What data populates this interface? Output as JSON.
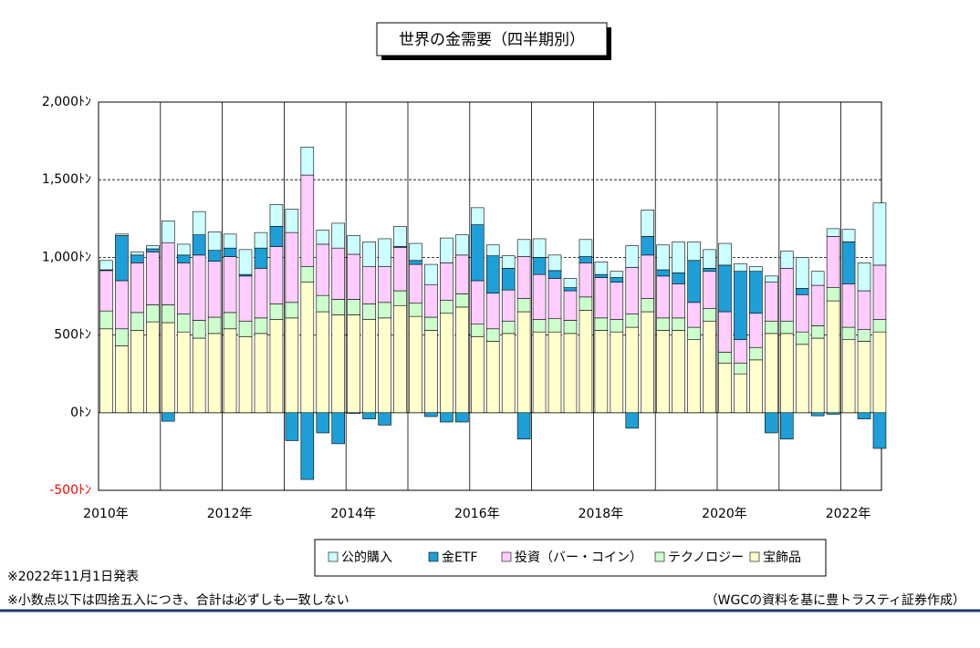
{
  "chart_data": {
    "type": "bar",
    "stacked": true,
    "title": "世界の金需要（四半期別）",
    "categories": [
      "2010年",
      null,
      null,
      null,
      null,
      null,
      null,
      null,
      "2012年",
      null,
      null,
      null,
      null,
      null,
      null,
      null,
      "2014年",
      null,
      null,
      null,
      null,
      null,
      null,
      null,
      "2016年",
      null,
      null,
      null,
      null,
      null,
      null,
      null,
      "2018年",
      null,
      null,
      null,
      null,
      null,
      null,
      null,
      "2020年",
      null,
      null,
      null,
      null,
      null,
      null,
      null,
      "2022年",
      null,
      null
    ],
    "series": [
      {
        "name": "宝飾品",
        "color": "#ffffcc",
        "values": [
          540,
          430,
          530,
          585,
          580,
          520,
          480,
          510,
          540,
          490,
          510,
          600,
          610,
          840,
          650,
          630,
          630,
          600,
          610,
          690,
          620,
          530,
          640,
          680,
          490,
          460,
          510,
          650,
          520,
          520,
          510,
          660,
          530,
          520,
          550,
          650,
          530,
          530,
          470,
          590,
          320,
          250,
          340,
          510,
          510,
          440,
          480,
          720,
          470,
          460,
          520
        ]
      },
      {
        "name": "テクノロジー",
        "color": "#ccffcc",
        "values": [
          115,
          110,
          115,
          110,
          115,
          115,
          115,
          105,
          105,
          100,
          100,
          100,
          100,
          100,
          105,
          100,
          100,
          100,
          100,
          95,
          85,
          85,
          85,
          85,
          80,
          80,
          80,
          85,
          80,
          85,
          85,
          85,
          80,
          80,
          85,
          85,
          80,
          80,
          80,
          80,
          70,
          70,
          80,
          80,
          80,
          80,
          80,
          85,
          80,
          75,
          80
        ]
      },
      {
        "name": "投資（バー・コイン）",
        "color": "#ffccff",
        "values": [
          260,
          310,
          320,
          340,
          400,
          330,
          420,
          360,
          360,
          290,
          320,
          370,
          450,
          590,
          330,
          330,
          290,
          240,
          230,
          280,
          250,
          210,
          240,
          250,
          280,
          230,
          200,
          270,
          290,
          260,
          190,
          220,
          260,
          240,
          300,
          280,
          270,
          220,
          160,
          240,
          260,
          150,
          220,
          250,
          340,
          240,
          260,
          330,
          280,
          250,
          350
        ]
      },
      {
        "name": "金ETF",
        "color": "#1e9fd8",
        "values": [
          5,
          290,
          50,
          20,
          -55,
          50,
          130,
          70,
          55,
          10,
          130,
          130,
          -180,
          -430,
          -130,
          -200,
          -5,
          -40,
          -80,
          5,
          25,
          -25,
          -60,
          -60,
          360,
          240,
          140,
          -170,
          110,
          50,
          20,
          40,
          20,
          30,
          -100,
          120,
          40,
          70,
          270,
          20,
          300,
          440,
          270,
          -130,
          -170,
          40,
          -20,
          -10,
          270,
          -40,
          -230
        ]
      },
      {
        "name": "公的購入",
        "color": "#ccffff",
        "values": [
          60,
          10,
          20,
          20,
          140,
          70,
          150,
          120,
          90,
          160,
          100,
          140,
          150,
          180,
          90,
          160,
          120,
          160,
          180,
          130,
          110,
          130,
          160,
          130,
          110,
          70,
          80,
          110,
          120,
          100,
          60,
          110,
          80,
          40,
          140,
          170,
          160,
          200,
          120,
          120,
          140,
          50,
          30,
          40,
          110,
          200,
          90,
          50,
          80,
          180,
          400
        ]
      }
    ],
    "ylim": [
      -500,
      2000
    ],
    "yticks": [
      {
        "value": -500,
        "label": "-500ﾄﾝ"
      },
      {
        "value": 0,
        "label": "0ﾄﾝ"
      },
      {
        "value": 500,
        "label": "500ﾄﾝ"
      },
      {
        "value": 1000,
        "label": "1,000ﾄﾝ"
      },
      {
        "value": 1500,
        "label": "1,500ﾄﾝ"
      },
      {
        "value": 2000,
        "label": "2,000ﾄﾝ"
      }
    ],
    "negative_tick_color": "#ff0000",
    "grid": true,
    "legend": "bottom",
    "notes": [
      "※2022年11月1日発表",
      "※小数点以下は四捨五入につき、合計は必ずしも一致しない"
    ],
    "source": "（WGCの資料を基に豊トラスティ証券作成）"
  }
}
